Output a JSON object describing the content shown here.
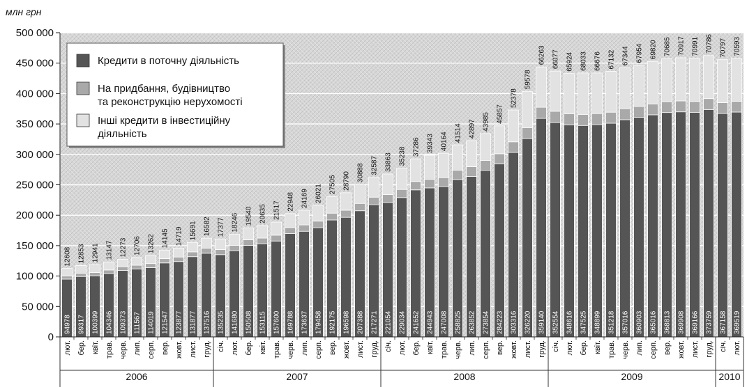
{
  "chart_data": {
    "type": "bar",
    "stacked": true,
    "ylabel": "млн грн",
    "ylim": [
      0,
      500000
    ],
    "yticks": [
      "0",
      "50 000",
      "100 000",
      "150 000",
      "200 000",
      "250 000",
      "300 000",
      "350 000",
      "400 000",
      "450 000",
      "500 000"
    ],
    "ytick_values": [
      0,
      50000,
      100000,
      150000,
      200000,
      250000,
      300000,
      350000,
      400000,
      450000,
      500000
    ],
    "grid": true,
    "legend_placement": "top-left",
    "colors": {
      "current": "#555555",
      "real_estate": "#a9a9a9",
      "other": "#e2e2e2",
      "background": "#d2d2d2"
    },
    "categories": [
      "лют.",
      "бер.",
      "квіт.",
      "трав.",
      "черв.",
      "лип.",
      "серп.",
      "вер.",
      "жовт.",
      "лист.",
      "груд.",
      "січ.",
      "лют.",
      "бер.",
      "квіт.",
      "трав.",
      "черв.",
      "лип.",
      "серп.",
      "вер.",
      "жовт.",
      "лист.",
      "груд.",
      "січ.",
      "лют.",
      "бер.",
      "квіт.",
      "трав.",
      "черв.",
      "лип.",
      "серп.",
      "вер.",
      "жовт.",
      "лист.",
      "груд.",
      "січ.",
      "лют.",
      "бер.",
      "квіт.",
      "трав.",
      "черв.",
      "лип.",
      "серп.",
      "вер.",
      "жовт.",
      "лист.",
      "груд.",
      "січ.",
      "лют."
    ],
    "years": [
      {
        "label": "2006",
        "start": 0,
        "end": 10
      },
      {
        "label": "2007",
        "start": 11,
        "end": 22
      },
      {
        "label": "2008",
        "start": 23,
        "end": 34
      },
      {
        "label": "2009",
        "start": 35,
        "end": 46
      },
      {
        "label": "2010",
        "start": 47,
        "end": 48
      }
    ],
    "series": [
      {
        "name": "Кредити в поточну діяльність",
        "key": "current",
        "values": [
          94978,
          99317,
          100399,
          104346,
          109373,
          111567,
          114019,
          121547,
          123877,
          131877,
          137516,
          135235,
          141680,
          150508,
          153115,
          157600,
          169788,
          173637,
          179458,
          192175,
          196598,
          207388,
          217271,
          221054,
          229034,
          241652,
          244943,
          247008,
          258825,
          263852,
          273854,
          284223,
          303316,
          326220,
          359140,
          352554,
          348616,
          347525,
          348899,
          351218,
          357016,
          360903,
          365016,
          368813,
          369908,
          369166,
          373759,
          367158,
          369519
        ]
      },
      {
        "name": "На придбання, будівництво та реконструкцію нерухомості",
        "key": "real_estate",
        "values": [
          5000,
          5200,
          5400,
          5600,
          6000,
          6200,
          6500,
          7000,
          7400,
          7800,
          8200,
          8400,
          8700,
          9000,
          9300,
          9600,
          10000,
          10400,
          10800,
          11200,
          11600,
          12000,
          12400,
          12800,
          13300,
          13800,
          14300,
          14800,
          15300,
          15800,
          16300,
          16800,
          17300,
          17800,
          18300,
          18300,
          18300,
          18200,
          18200,
          18100,
          18100,
          18000,
          18000,
          18000,
          18000,
          17900,
          17900,
          17800,
          17800
        ]
      },
      {
        "name": "Інші кредити в інвестиційну діяльність",
        "key": "other",
        "values": [
          12608,
          12853,
          12941,
          13147,
          12273,
          12706,
          13262,
          14145,
          14719,
          15691,
          16582,
          17377,
          18246,
          19540,
          20635,
          21517,
          22948,
          24169,
          26021,
          27505,
          28790,
          30888,
          32587,
          33863,
          35238,
          37286,
          39343,
          40164,
          41514,
          42897,
          43985,
          45857,
          52378,
          59578,
          66263,
          66077,
          65924,
          68033,
          66676,
          67132,
          67344,
          67954,
          69820,
          70685,
          70917,
          70991,
          70786,
          70797,
          70593
        ]
      }
    ],
    "data_labels": {
      "bottom": [
        "94978",
        "99317",
        "100399",
        "104346",
        "109373",
        "111567",
        "114019",
        "121547",
        "123877",
        "131877",
        "137516",
        "135235",
        "141680",
        "150508",
        "153115",
        "157600",
        "169788",
        "173637",
        "179458",
        "192175",
        "196598",
        "207388",
        "217271",
        "221054",
        "229034",
        "241652",
        "244943",
        "247008",
        "258825",
        "263852",
        "273854",
        "284223",
        "303316",
        "326220",
        "359140",
        "352554",
        "348616",
        "347525",
        "348899",
        "351218",
        "357016",
        "360903",
        "365016",
        "368813",
        "369908",
        "369166",
        "373759",
        "367158",
        "369519"
      ],
      "top": [
        "12608",
        "12853",
        "12941",
        "13147",
        "12273",
        "12706",
        "13262",
        "14145",
        "14719",
        "15691",
        "16582",
        "17377",
        "18246",
        "19540",
        "20635",
        "21517",
        "22948",
        "24169",
        "26021",
        "27505",
        "28790",
        "30888",
        "32587",
        "33863",
        "35238",
        "37286",
        "39343",
        "40164",
        "41514",
        "42897",
        "43985",
        "45857",
        "52378",
        "59578",
        "66263",
        "66077",
        "65924",
        "68033",
        "66676",
        "67132",
        "67344",
        "67954",
        "69820",
        "70685",
        "70917",
        "70991",
        "70786",
        "70797",
        "70593"
      ]
    },
    "legend": [
      {
        "key": "current",
        "lines": [
          "Кредити в поточну діяльність"
        ]
      },
      {
        "key": "real_estate",
        "lines": [
          "На придбання, будівництво",
          "та реконструкцію нерухомості"
        ]
      },
      {
        "key": "other",
        "lines": [
          "Інші кредити в інвестиційну",
          "діяльність"
        ]
      }
    ]
  }
}
